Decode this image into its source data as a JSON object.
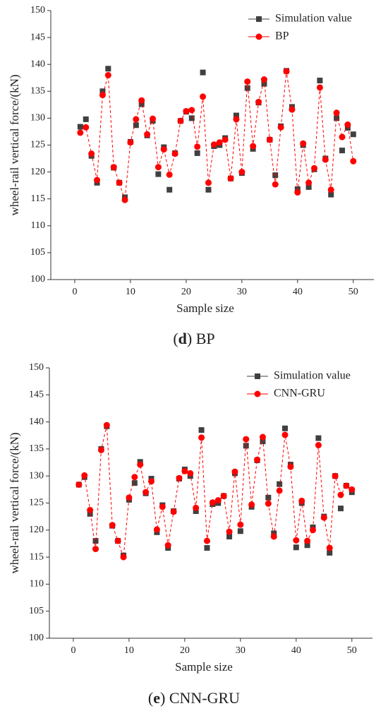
{
  "chart_data": [
    {
      "type": "line",
      "caption": [
        "(",
        "d",
        ") BP"
      ],
      "xlabel": "Sample size",
      "ylabel": "wheel-rail vertical force/(kN)",
      "x": [
        1,
        2,
        3,
        4,
        5,
        6,
        7,
        8,
        9,
        10,
        11,
        12,
        13,
        14,
        15,
        16,
        17,
        18,
        19,
        20,
        21,
        22,
        23,
        24,
        25,
        26,
        27,
        28,
        29,
        30,
        31,
        32,
        33,
        34,
        35,
        36,
        37,
        38,
        39,
        40,
        41,
        42,
        43,
        44,
        45,
        46,
        47,
        48,
        49,
        50
      ],
      "xlim": [
        -4.3,
        53.7
      ],
      "xticks": [
        0,
        10,
        20,
        30,
        40,
        50
      ],
      "ylim": [
        100,
        150
      ],
      "yticks": [
        100,
        105,
        110,
        115,
        120,
        125,
        130,
        135,
        140,
        145,
        150
      ],
      "legend": "upper right",
      "series": [
        {
          "name": "Simulation value",
          "color": "#404040",
          "values": [
            128.4,
            129.8,
            123.0,
            118.0,
            135.0,
            139.2,
            120.8,
            118.0,
            115.3,
            125.6,
            128.7,
            132.6,
            126.8,
            129.5,
            119.6,
            124.6,
            116.7,
            123.5,
            129.5,
            131.2,
            130.0,
            123.5,
            138.5,
            116.7,
            124.8,
            125.0,
            126.3,
            118.8,
            130.5,
            119.8,
            135.6,
            124.3,
            132.9,
            136.4,
            126.0,
            119.4,
            128.5,
            138.8,
            132.1,
            116.8,
            125.0,
            117.2,
            120.5,
            137.0,
            122.5,
            115.8,
            130.0,
            124.0,
            128.2,
            127.0
          ]
        },
        {
          "name": "BP",
          "color": "#ff0000",
          "values": [
            127.3,
            128.3,
            123.4,
            118.5,
            134.3,
            138.0,
            120.9,
            118.0,
            114.8,
            125.5,
            129.8,
            133.3,
            127.0,
            129.9,
            120.9,
            124.2,
            119.5,
            123.4,
            129.5,
            131.3,
            131.5,
            124.7,
            134.0,
            118.0,
            125.1,
            125.5,
            126.0,
            118.8,
            129.8,
            120.0,
            136.8,
            124.8,
            133.0,
            137.2,
            126.0,
            117.7,
            128.3,
            138.7,
            131.6,
            116.2,
            125.3,
            118.0,
            120.7,
            135.7,
            122.3,
            116.7,
            131.0,
            126.5,
            128.8,
            122.0
          ]
        }
      ]
    },
    {
      "type": "line",
      "caption": [
        "(",
        "e",
        ") CNN-GRU"
      ],
      "xlabel": "Sample size",
      "ylabel": "wheel-rail vertical force/(kN)",
      "x": [
        1,
        2,
        3,
        4,
        5,
        6,
        7,
        8,
        9,
        10,
        11,
        12,
        13,
        14,
        15,
        16,
        17,
        18,
        19,
        20,
        21,
        22,
        23,
        24,
        25,
        26,
        27,
        28,
        29,
        30,
        31,
        32,
        33,
        34,
        35,
        36,
        37,
        38,
        39,
        40,
        41,
        42,
        43,
        44,
        45,
        46,
        47,
        48,
        49,
        50
      ],
      "xlim": [
        -4.3,
        53.7
      ],
      "xticks": [
        0,
        10,
        20,
        30,
        40,
        50
      ],
      "ylim": [
        100,
        150
      ],
      "yticks": [
        100,
        105,
        110,
        115,
        120,
        125,
        130,
        135,
        140,
        145,
        150
      ],
      "legend": "upper right",
      "series": [
        {
          "name": "Simulation value",
          "color": "#404040",
          "values": [
            128.4,
            129.8,
            123.0,
            118.0,
            135.0,
            139.2,
            120.8,
            118.0,
            115.3,
            125.6,
            128.7,
            132.6,
            126.8,
            129.5,
            119.6,
            124.6,
            116.7,
            123.5,
            129.5,
            131.2,
            130.0,
            123.5,
            138.5,
            116.7,
            124.8,
            125.0,
            126.3,
            118.8,
            130.5,
            119.8,
            135.6,
            124.3,
            132.9,
            136.4,
            126.0,
            119.4,
            128.5,
            138.8,
            132.1,
            116.8,
            125.0,
            117.2,
            120.5,
            137.0,
            122.5,
            115.8,
            130.0,
            124.0,
            128.2,
            127.0
          ]
        },
        {
          "name": "CNN-GRU",
          "color": "#ff0000",
          "values": [
            128.4,
            130.1,
            123.7,
            116.5,
            134.8,
            139.4,
            120.9,
            118.0,
            115.0,
            126.0,
            129.8,
            132.1,
            127.0,
            129.0,
            120.1,
            124.3,
            117.2,
            123.4,
            129.6,
            130.9,
            130.5,
            124.1,
            137.1,
            118.0,
            125.1,
            125.5,
            126.3,
            119.7,
            130.8,
            121.0,
            136.8,
            124.7,
            133.0,
            137.2,
            124.9,
            118.8,
            127.3,
            137.6,
            131.7,
            118.1,
            125.4,
            118.0,
            120.0,
            135.7,
            122.3,
            116.7,
            130.0,
            126.5,
            128.2,
            127.5
          ]
        }
      ]
    }
  ]
}
